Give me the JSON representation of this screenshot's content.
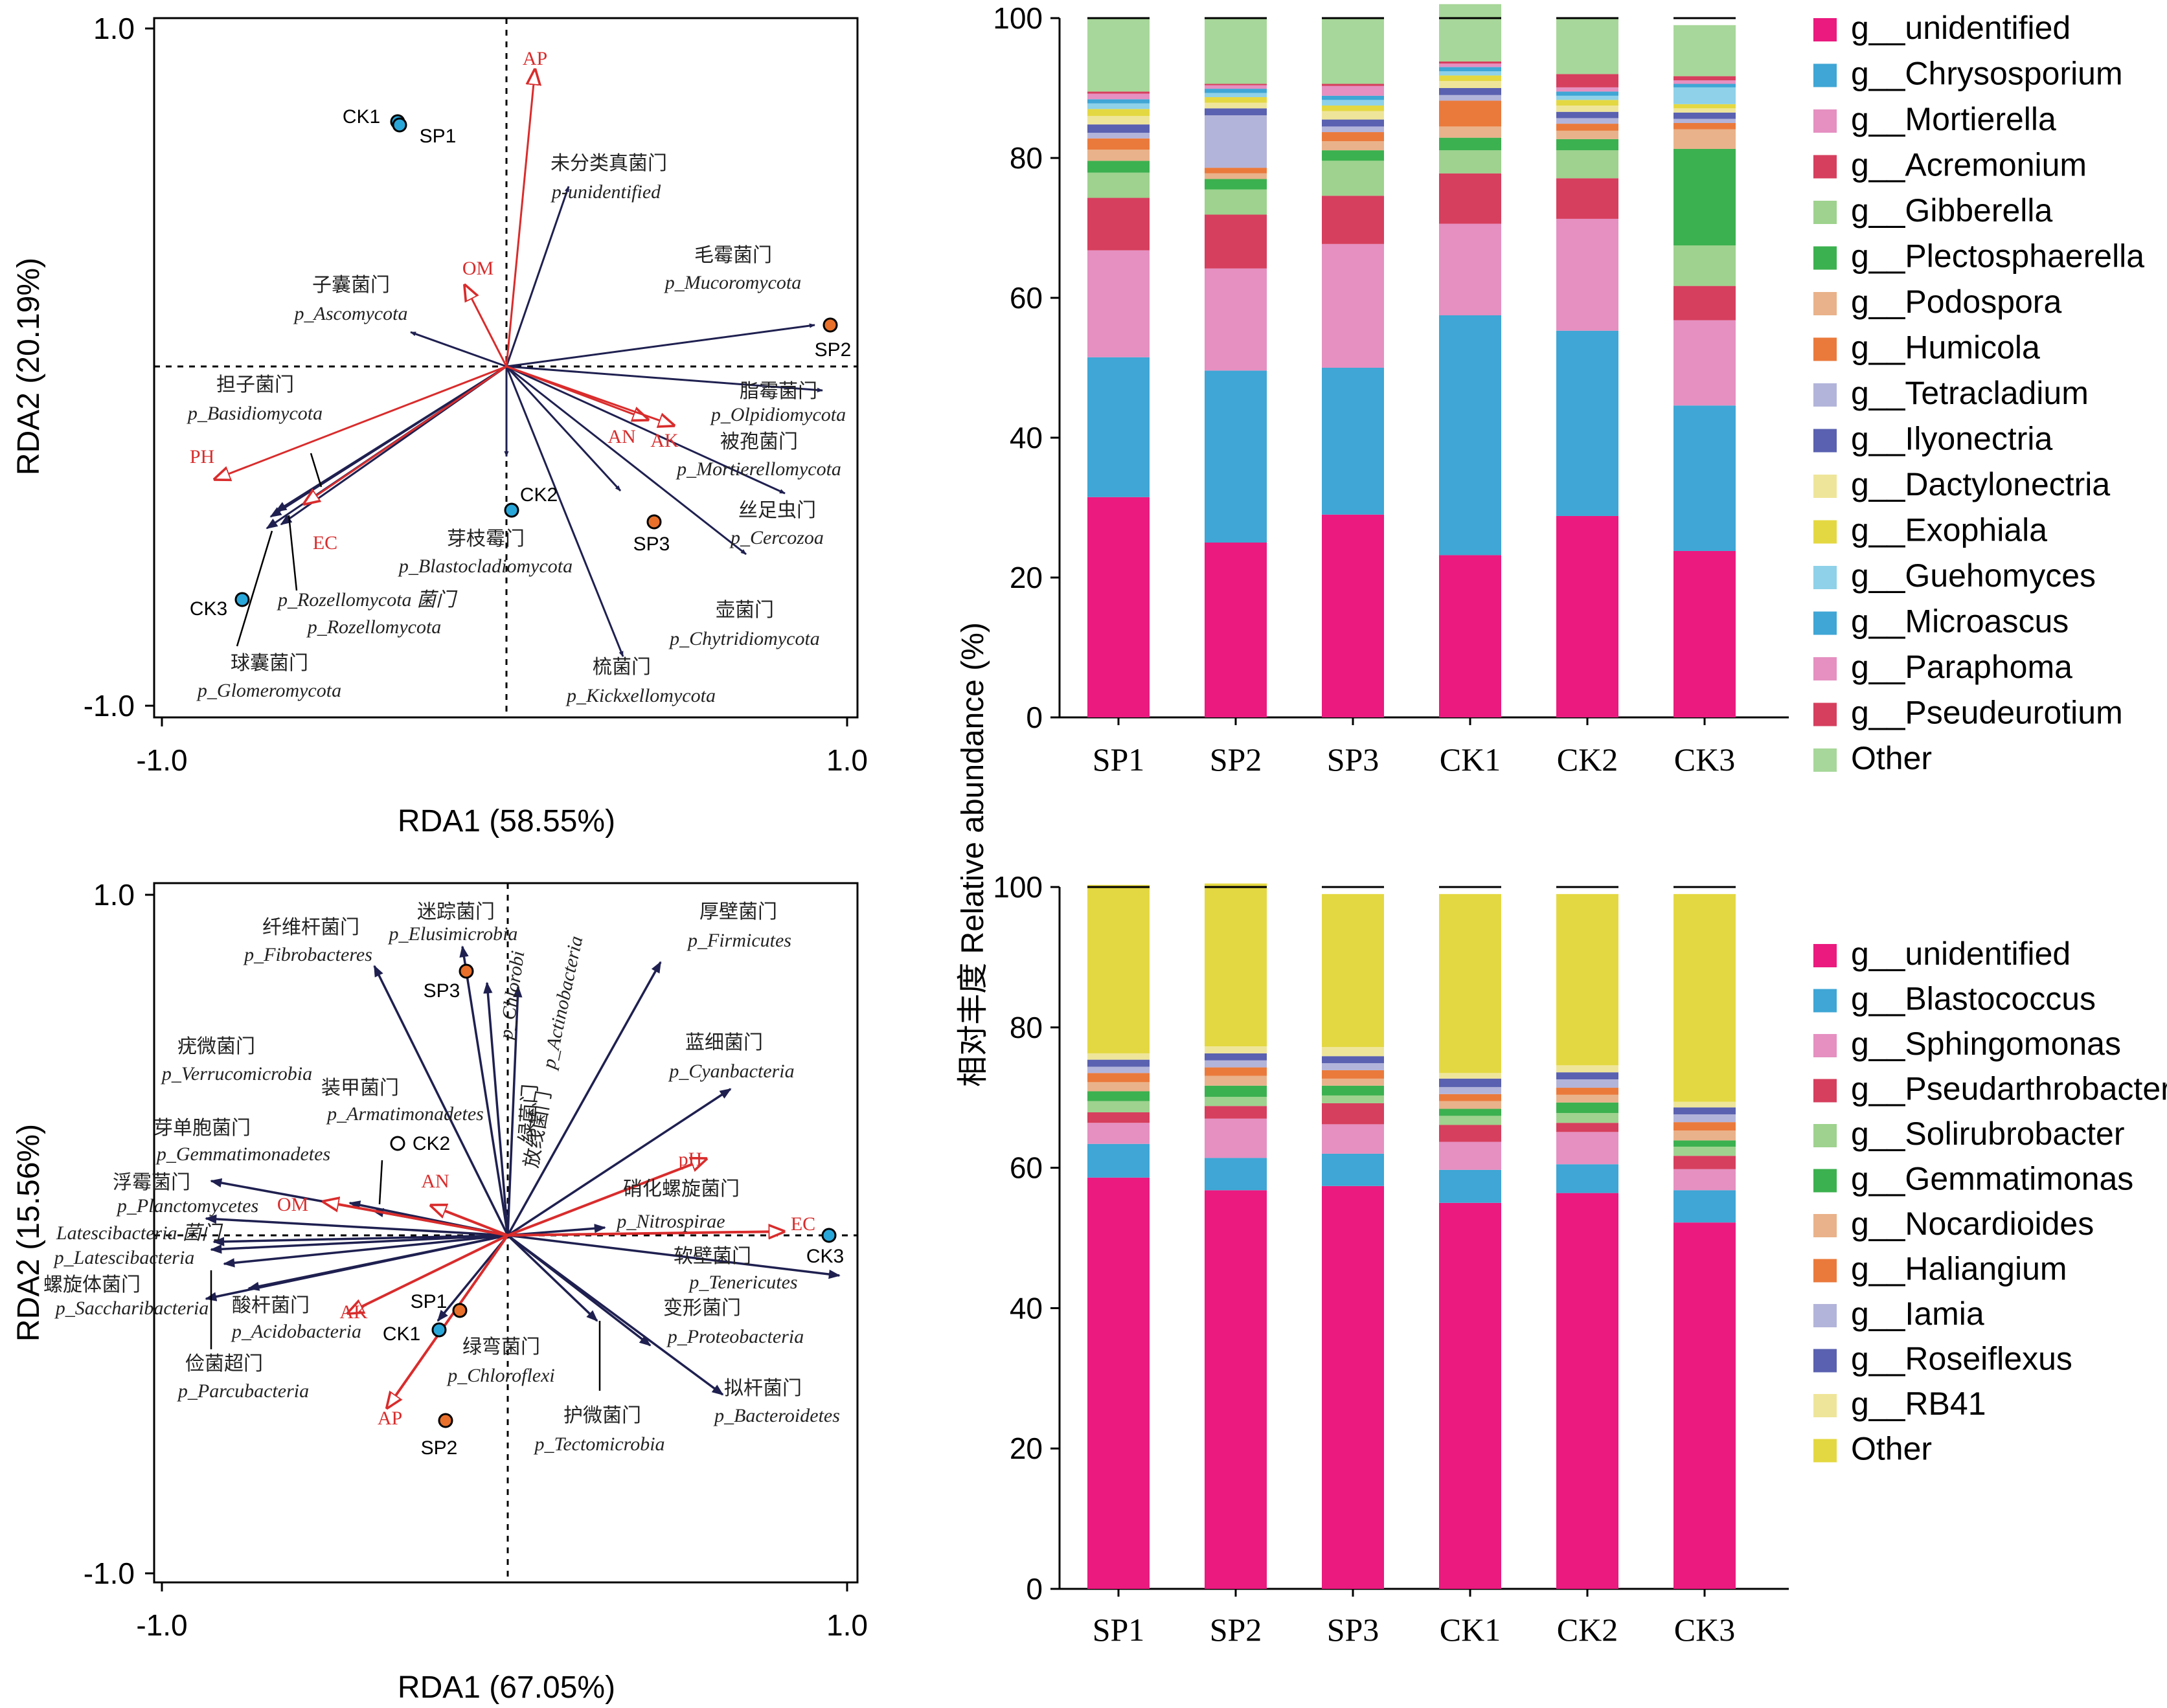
{
  "colors": {
    "arrow_species": "#1f2050",
    "arrow_env": "#d92c2c",
    "site_CK": "#2aa7d9",
    "site_SP": "#e8702a"
  },
  "rda_fungi": {
    "xlabel": "RDA1 (58.55%)",
    "ylabel": "RDA2 (20.19%)",
    "xticks": [
      "-1.0",
      "1.0"
    ],
    "yticks": [
      "1.0",
      "-1.0"
    ],
    "species": [
      {
        "cn": "未分类真菌门",
        "lat": "p-unidentified",
        "x": 0.18,
        "y": 0.58
      },
      {
        "cn": "毛霉菌门",
        "lat": "p_Mucoromycota",
        "x": 0.9,
        "y": 0.12
      },
      {
        "cn": "子囊菌门",
        "lat": "p_Ascomycota",
        "x": -0.28,
        "y": 0.1
      },
      {
        "cn": "担子菌门",
        "lat": "p_Basidiomycota",
        "x": -0.71,
        "y": -0.4
      },
      {
        "cn": "脂霉菌门",
        "lat": "p_Olpidiomycota",
        "x": 0.93,
        "y": -0.07
      },
      {
        "cn": "被孢菌门",
        "lat": "p_Mortierellomycota",
        "x": 0.81,
        "y": -0.37
      },
      {
        "cn": "丝足虫门",
        "lat": "p_Cercozoa",
        "x": 0.69,
        "y": -0.55
      },
      {
        "cn": "芽枝霉门",
        "lat": "p_Blastocladiomycota",
        "x": 0.0,
        "y": -0.26
      },
      {
        "cn": "壶菌门",
        "lat": "p_Chytridiomycota",
        "x": 0.33,
        "y": -0.36
      },
      {
        "cn": "梳菌门",
        "lat": "p_Kickxellomycota",
        "x": 0.34,
        "y": -0.85
      },
      {
        "cn": "",
        "lat": "p_Rozellomycota 菌门",
        "x": -0.69,
        "y": -0.47
      },
      {
        "cn": "",
        "lat": "p_Rozellomycota",
        "x": -0.68,
        "y": -0.42
      },
      {
        "cn": "球囊菌门",
        "lat": "p_Glomeromycota",
        "x": -0.66,
        "y": -0.46
      }
    ],
    "env": [
      {
        "name": "AP",
        "x": 0.07,
        "y": 0.85
      },
      {
        "name": "OM",
        "x": -0.12,
        "y": 0.23
      },
      {
        "name": "PH",
        "x": -0.84,
        "y": -0.32
      },
      {
        "name": "EC",
        "x": -0.58,
        "y": -0.4
      },
      {
        "name": "AN",
        "x": 0.4,
        "y": -0.17
      },
      {
        "name": "AK",
        "x": 0.48,
        "y": -0.18
      }
    ],
    "sites": [
      {
        "name": "CK1",
        "x": -0.31,
        "y": 0.72,
        "type": "CK"
      },
      {
        "name": "SP1",
        "x": -0.31,
        "y": 0.71,
        "type": "SP"
      },
      {
        "name": "SP2",
        "x": 0.94,
        "y": 0.12,
        "type": "SP"
      },
      {
        "name": "CK2",
        "x": 0.01,
        "y": -0.42,
        "type": "CK"
      },
      {
        "name": "SP3",
        "x": 0.42,
        "y": -0.45,
        "type": "SP"
      },
      {
        "name": "CK3",
        "x": -0.76,
        "y": -0.68,
        "type": "CK"
      }
    ]
  },
  "rda_bacteria": {
    "xlabel": "RDA1 (67.05%)",
    "ylabel": "RDA2 (15.56%)",
    "xticks": [
      "-1.0",
      "1.0"
    ],
    "yticks": [
      "1.0",
      "-1.0"
    ],
    "species": [
      {
        "cn": "纤维杆菌门",
        "lat": "p_Fibrobacteres",
        "x": -0.38,
        "y": 0.78
      },
      {
        "cn": "迷踪菌门",
        "lat": "p_Elusimicrobia",
        "x": -0.13,
        "y": 0.84
      },
      {
        "cn": "绿菌门",
        "lat": "p_Chlorobi",
        "x": -0.06,
        "y": 0.73
      },
      {
        "cn": "放线菌门",
        "lat": "p_Actinobacteria",
        "x": 0.03,
        "y": 0.72
      },
      {
        "cn": "厚壁菌门",
        "lat": "p_Firmicutes",
        "x": 0.44,
        "y": 0.78
      },
      {
        "cn": "疣微菌门",
        "lat": "p_Verrucomicrobia",
        "x": -0.86,
        "y": 0.15
      },
      {
        "cn": "装甲菌门",
        "lat": "p_Armatimonadetes",
        "x": -0.39,
        "y": 0.07
      },
      {
        "cn": "芽单胞菌门",
        "lat": "p_Gemmatimonadetes",
        "x": -0.46,
        "y": 0.09
      },
      {
        "cn": "蓝细菌门",
        "lat": "p_Cyanbacteria",
        "x": 0.64,
        "y": 0.42
      },
      {
        "cn": "浮霉菌门",
        "lat": "p_Planctomycetes",
        "x": -0.87,
        "y": 0.05
      },
      {
        "cn": "硝化螺旋菌门",
        "lat": "p_Nitrospirae",
        "x": 0.28,
        "y": 0.02
      },
      {
        "cn": "",
        "lat": "Latescibacteria 菌门",
        "x": -0.85,
        "y": -0.02
      },
      {
        "cn": "",
        "lat": "p_Latescibacteria",
        "x": -0.86,
        "y": -0.04
      },
      {
        "cn": "软壁菌门",
        "lat": "p_Tenericutes",
        "x": 0.95,
        "y": -0.06
      },
      {
        "cn": "螺旋体菌门",
        "lat": "p_Saccharibacteria",
        "x": -0.82,
        "y": -0.08
      },
      {
        "cn": "酸杆菌门",
        "lat": "p_Acidobacteria",
        "x": -0.75,
        "y": -0.15
      },
      {
        "cn": "俭菌超门",
        "lat": "p_Parcubacteria",
        "x": -0.87,
        "y": -0.18
      },
      {
        "cn": "变形菌门",
        "lat": "p_Proteobacteria",
        "x": 0.41,
        "y": -0.17
      },
      {
        "cn": "绿弯菌门",
        "lat": "p_Chloroflexi",
        "x": -0.2,
        "y": -0.13
      },
      {
        "cn": "拟杆菌门",
        "lat": "p_Bacteroidetes",
        "x": 0.62,
        "y": -0.3
      },
      {
        "cn": "护微菌门",
        "lat": "p_Tectomicrobia",
        "x": 0.26,
        "y": -0.13
      }
    ],
    "env": [
      {
        "name": "OM",
        "x": -0.53,
        "y": 0.05
      },
      {
        "name": "AN",
        "x": -0.22,
        "y": 0.04
      },
      {
        "name": "pH",
        "x": 0.58,
        "y": 0.13
      },
      {
        "name": "EC",
        "x": 0.8,
        "y": 0.01
      },
      {
        "name": "AK",
        "x": -0.46,
        "y": -0.11
      },
      {
        "name": "AP",
        "x": -0.35,
        "y": -0.25
      }
    ],
    "sites": [
      {
        "name": "SP3",
        "x": -0.13,
        "y": 0.39,
        "type": "SP"
      },
      {
        "name": "CK2",
        "x": -0.31,
        "y": 0.13,
        "type": "CK_open"
      },
      {
        "name": "CK3",
        "x": 0.92,
        "y": 0.0,
        "type": "CK"
      },
      {
        "name": "SP1",
        "x": -0.14,
        "y": -0.11,
        "type": "SP"
      },
      {
        "name": "CK1",
        "x": -0.2,
        "y": -0.14,
        "type": "CK"
      },
      {
        "name": "SP2",
        "x": -0.18,
        "y": -0.27,
        "type": "SP"
      }
    ]
  },
  "bar_ylabel": "相对丰度 Relative abundance (%)",
  "chart_data": [
    {
      "type": "bar",
      "title": "",
      "stacked": true,
      "categories": [
        "SP1",
        "SP2",
        "SP3",
        "CK1",
        "CK2",
        "CK3"
      ],
      "ylim": [
        0,
        100
      ],
      "yticks": [
        0,
        20,
        40,
        60,
        80,
        100
      ],
      "ylabel": "相对丰度 Relative abundance (%)",
      "series": [
        {
          "name": "g__unidentified",
          "color": "#ea1a7f",
          "values": [
            31.5,
            25.0,
            29.0,
            23.2,
            28.8,
            23.8
          ]
        },
        {
          "name": "g__Chrysosporium",
          "color": "#3fa6d5",
          "values": [
            20.0,
            24.6,
            21.0,
            34.3,
            26.5,
            20.8
          ]
        },
        {
          "name": "g__Mortierella",
          "color": "#e590c1",
          "values": [
            15.3,
            14.6,
            17.7,
            13.1,
            16.0,
            12.2
          ]
        },
        {
          "name": "g__Acremonium",
          "color": "#d63f5e",
          "values": [
            7.5,
            7.7,
            6.9,
            7.2,
            5.8,
            4.9
          ]
        },
        {
          "name": "g__Gibberella",
          "color": "#9ed28e",
          "values": [
            3.6,
            3.6,
            5.0,
            3.3,
            4.0,
            5.8
          ]
        },
        {
          "name": "g__Plectosphaerella",
          "color": "#3cb14f",
          "values": [
            1.7,
            1.5,
            1.5,
            1.8,
            1.6,
            13.8
          ]
        },
        {
          "name": "g__Podospora",
          "color": "#e9b28a",
          "values": [
            1.6,
            0.8,
            1.3,
            1.6,
            1.2,
            2.8
          ]
        },
        {
          "name": "g__Humicola",
          "color": "#ea7a3c",
          "values": [
            1.6,
            0.8,
            1.3,
            3.7,
            1.0,
            0.9
          ]
        },
        {
          "name": "g__Tetracladium",
          "color": "#b3b4da",
          "values": [
            0.8,
            7.5,
            0.8,
            0.8,
            0.8,
            0.6
          ]
        },
        {
          "name": "g__Ilyonectria",
          "color": "#5a61b0",
          "values": [
            1.2,
            1.0,
            1.0,
            1.0,
            0.9,
            0.9
          ]
        },
        {
          "name": "g__Dactylonectria",
          "color": "#efe59a",
          "values": [
            1.2,
            0.8,
            1.2,
            1.0,
            0.9,
            0.6
          ]
        },
        {
          "name": "g__Exophiala",
          "color": "#e4d842",
          "values": [
            1.0,
            0.8,
            0.8,
            0.8,
            0.8,
            0.6
          ]
        },
        {
          "name": "g__Guehomyces",
          "color": "#8ed1e8",
          "values": [
            0.8,
            0.6,
            0.8,
            0.6,
            0.6,
            2.4
          ]
        },
        {
          "name": "g__Microascus",
          "color": "#3fa6d5",
          "values": [
            0.6,
            0.6,
            0.6,
            0.6,
            0.6,
            0.5
          ]
        },
        {
          "name": "g__Paraphoma",
          "color": "#e590c1",
          "values": [
            0.8,
            0.5,
            1.4,
            0.5,
            0.6,
            0.5
          ]
        },
        {
          "name": "g__Pseudeurotium",
          "color": "#d63f5e",
          "values": [
            0.3,
            0.2,
            0.3,
            0.3,
            1.9,
            0.6
          ]
        },
        {
          "name": "Other",
          "color": "#a7d79a",
          "values": [
            10.5,
            9.4,
            9.4,
            8.2,
            8.0,
            7.3
          ]
        }
      ]
    },
    {
      "type": "bar",
      "title": "",
      "stacked": true,
      "categories": [
        "SP1",
        "SP2",
        "SP3",
        "CK1",
        "CK2",
        "CK3"
      ],
      "ylim": [
        0,
        100
      ],
      "yticks": [
        0,
        20,
        40,
        60,
        80,
        100
      ],
      "ylabel": "相对丰度 Relative abundance (%)",
      "series": [
        {
          "name": "g__unidentified",
          "color": "#ea1a7f",
          "values": [
            58.6,
            56.8,
            57.4,
            55.0,
            56.4,
            52.2
          ]
        },
        {
          "name": "g__Blastococcus",
          "color": "#3fa6d5",
          "values": [
            4.8,
            4.6,
            4.6,
            4.7,
            4.1,
            4.6
          ]
        },
        {
          "name": "g__Sphingomonas",
          "color": "#e590c1",
          "values": [
            3.0,
            5.6,
            4.2,
            4.0,
            4.6,
            3.0
          ]
        },
        {
          "name": "g__Pseudarthrobacter",
          "color": "#d63f5e",
          "values": [
            1.5,
            1.8,
            3.0,
            2.4,
            1.3,
            1.9
          ]
        },
        {
          "name": "g__Solirubrobacter",
          "color": "#9ed28e",
          "values": [
            1.6,
            1.3,
            1.1,
            1.3,
            1.4,
            1.3
          ]
        },
        {
          "name": "g__Gemmatimonas",
          "color": "#3cb14f",
          "values": [
            1.4,
            1.6,
            1.4,
            1.0,
            1.5,
            0.9
          ]
        },
        {
          "name": "g__Nocardioides",
          "color": "#e9b28a",
          "values": [
            1.3,
            1.4,
            1.0,
            1.1,
            1.1,
            1.4
          ]
        },
        {
          "name": "g__Haliangium",
          "color": "#ea7a3c",
          "values": [
            1.3,
            1.2,
            1.2,
            1.0,
            1.0,
            1.2
          ]
        },
        {
          "name": "g__Iamia",
          "color": "#b3b4da",
          "values": [
            0.9,
            1.0,
            1.0,
            1.0,
            1.2,
            1.1
          ]
        },
        {
          "name": "g__Roseiflexus",
          "color": "#5a61b0",
          "values": [
            1.0,
            1.0,
            1.0,
            1.2,
            1.0,
            1.0
          ]
        },
        {
          "name": "g__RB41",
          "color": "#efe59a",
          "values": [
            0.9,
            1.0,
            1.3,
            0.8,
            1.0,
            0.8
          ]
        },
        {
          "name": "Other",
          "color": "#e4d842",
          "values": [
            24.0,
            23.2,
            21.8,
            25.5,
            24.4,
            29.6
          ]
        }
      ]
    }
  ]
}
